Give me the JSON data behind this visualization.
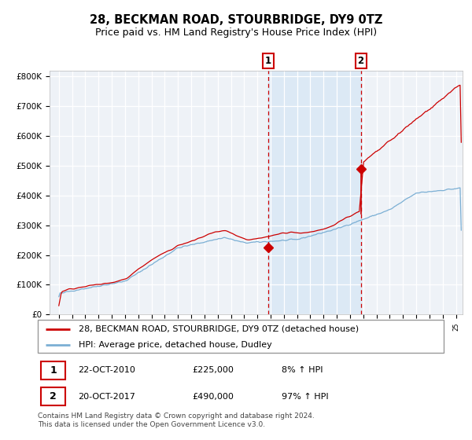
{
  "title": "28, BECKMAN ROAD, STOURBRIDGE, DY9 0TZ",
  "subtitle": "Price paid vs. HM Land Registry's House Price Index (HPI)",
  "ylim": [
    0,
    820000
  ],
  "yticks": [
    0,
    100000,
    200000,
    300000,
    400000,
    500000,
    600000,
    700000,
    800000
  ],
  "ytick_labels": [
    "£0",
    "£100K",
    "£200K",
    "£300K",
    "£400K",
    "£500K",
    "£600K",
    "£700K",
    "£800K"
  ],
  "hpi_color": "#7bafd4",
  "price_color": "#cc0000",
  "sale1_date": 2010.81,
  "sale1_price": 225000,
  "sale2_date": 2017.81,
  "sale2_price": 490000,
  "vline_color": "#cc0000",
  "shade_color": "#dce9f5",
  "plot_bg_color": "#eef2f7",
  "grid_color": "#ffffff",
  "legend_label_price": "28, BECKMAN ROAD, STOURBRIDGE, DY9 0TZ (detached house)",
  "legend_label_hpi": "HPI: Average price, detached house, Dudley",
  "note1_date": "22-OCT-2010",
  "note1_price": "£225,000",
  "note1_hpi": "8% ↑ HPI",
  "note2_date": "20-OCT-2017",
  "note2_price": "£490,000",
  "note2_hpi": "97% ↑ HPI",
  "footnote": "Contains HM Land Registry data © Crown copyright and database right 2024.\nThis data is licensed under the Open Government Licence v3.0.",
  "title_fontsize": 10.5,
  "subtitle_fontsize": 9,
  "tick_fontsize": 7.5,
  "legend_fontsize": 8,
  "note_fontsize": 8,
  "footnote_fontsize": 6.5
}
